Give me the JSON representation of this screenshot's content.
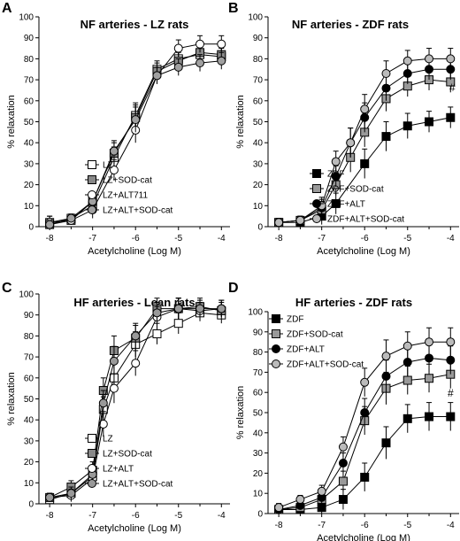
{
  "chart_data": [
    {
      "panel": "A",
      "type": "line",
      "title": "NF arteries - LZ rats",
      "xlabel": "Acetylcholine (Log M)",
      "ylabel": "% relaxation",
      "xlim": [
        -8.25,
        -3.8
      ],
      "ylim": [
        0,
        100
      ],
      "x_ticks": [
        -8,
        -7,
        -6,
        -5,
        -4
      ],
      "y_ticks": [
        0,
        10,
        20,
        30,
        40,
        50,
        60,
        70,
        80,
        90,
        100
      ],
      "legend_position": "lower-left",
      "annotation": "",
      "series": [
        {
          "name": "LZ",
          "marker": "square",
          "fill": "#ffffff",
          "x": [
            -8,
            -7.5,
            -7,
            -6.5,
            -6,
            -5.5,
            -5,
            -4.5,
            -4
          ],
          "y": [
            2,
            4,
            10,
            33,
            53,
            75,
            80,
            82,
            81
          ],
          "err": [
            3,
            2,
            4,
            5,
            6,
            4,
            4,
            4,
            4
          ]
        },
        {
          "name": "LZ+SOD-cat",
          "marker": "square",
          "fill": "#888888",
          "x": [
            -8,
            -7.5,
            -7,
            -6.5,
            -6,
            -5.5,
            -5,
            -4.5,
            -4
          ],
          "y": [
            1,
            3,
            12,
            35,
            52,
            74,
            79,
            83,
            82
          ],
          "err": [
            2,
            2,
            4,
            5,
            6,
            4,
            4,
            4,
            4
          ]
        },
        {
          "name": "LZ+ALT711",
          "marker": "circle",
          "fill": "#ffffff",
          "x": [
            -8,
            -7.5,
            -7,
            -6.5,
            -6,
            -5.5,
            -5,
            -4.5,
            -4
          ],
          "y": [
            2,
            3,
            8,
            27,
            46,
            72,
            85,
            87,
            87
          ],
          "err": [
            3,
            2,
            4,
            5,
            6,
            4,
            4,
            4,
            4
          ]
        },
        {
          "name": "LZ+ALT+SOD-cat",
          "marker": "circle",
          "fill": "#a0a0a0",
          "x": [
            -8,
            -7.5,
            -7,
            -6.5,
            -6,
            -5.5,
            -5,
            -4.5,
            -4
          ],
          "y": [
            1,
            4,
            12,
            36,
            51,
            72,
            76,
            78,
            79
          ],
          "err": [
            2,
            2,
            4,
            5,
            6,
            4,
            4,
            4,
            4
          ]
        }
      ]
    },
    {
      "panel": "B",
      "type": "line",
      "title": "NF arteries - ZDF rats",
      "xlabel": "Acetylcholine (Log M)",
      "ylabel": "% relaxation",
      "xlim": [
        -8.25,
        -3.8
      ],
      "ylim": [
        0,
        100
      ],
      "x_ticks": [
        -8,
        -7,
        -6,
        -5,
        -4
      ],
      "y_ticks": [
        0,
        10,
        20,
        30,
        40,
        50,
        60,
        70,
        80,
        90,
        100
      ],
      "legend_position": "lower-right",
      "annotation": "#",
      "series": [
        {
          "name": "ZDF",
          "marker": "square",
          "fill": "#000000",
          "x": [
            -8,
            -7.5,
            -7,
            -6.67,
            -6,
            -5.5,
            -5,
            -4.5,
            -4
          ],
          "y": [
            2,
            2,
            5,
            11,
            30,
            43,
            48,
            50,
            52
          ],
          "err": [
            2,
            2,
            4,
            5,
            7,
            7,
            6,
            5,
            5
          ]
        },
        {
          "name": "ZDF+SOD-cat",
          "marker": "square",
          "fill": "#999999",
          "x": [
            -8,
            -7.5,
            -7,
            -6.67,
            -6.33,
            -6,
            -5.5,
            -5,
            -4.5,
            -4
          ],
          "y": [
            2,
            3,
            8,
            20,
            33,
            45,
            61,
            67,
            70,
            69
          ],
          "err": [
            2,
            2,
            4,
            5,
            7,
            7,
            6,
            5,
            5,
            5
          ]
        },
        {
          "name": "ZDF+ALT",
          "marker": "circle",
          "fill": "#000000",
          "x": [
            -8,
            -7.5,
            -7,
            -6.67,
            -6.33,
            -6,
            -5.5,
            -5,
            -4.5,
            -4
          ],
          "y": [
            2,
            3,
            9,
            24,
            40,
            52,
            66,
            73,
            75,
            75
          ],
          "err": [
            2,
            2,
            4,
            5,
            7,
            7,
            6,
            5,
            5,
            5
          ]
        },
        {
          "name": "ZDF+ALT+SOD-cat",
          "marker": "circle",
          "fill": "#bbbbbb",
          "x": [
            -8,
            -7.5,
            -7,
            -6.67,
            -6.33,
            -6,
            -5.5,
            -5,
            -4.5,
            -4
          ],
          "y": [
            2,
            3,
            10,
            31,
            40,
            56,
            73,
            79,
            80,
            80
          ],
          "err": [
            2,
            2,
            4,
            5,
            7,
            7,
            6,
            5,
            5,
            5
          ]
        }
      ]
    },
    {
      "panel": "C",
      "type": "line",
      "title": "HF arteries - Lean rats",
      "xlabel": "Acetylcholine (Log M)",
      "ylabel": "% relaxation",
      "xlim": [
        -8.25,
        -3.8
      ],
      "ylim": [
        0,
        100
      ],
      "x_ticks": [
        -8,
        -7,
        -6,
        -5,
        -4
      ],
      "y_ticks": [
        0,
        10,
        20,
        30,
        40,
        50,
        60,
        70,
        80,
        90,
        100
      ],
      "legend_position": "lower-right",
      "annotation": "",
      "series": [
        {
          "name": "LZ",
          "marker": "square",
          "fill": "#ffffff",
          "x": [
            -8,
            -7.5,
            -7,
            -6.75,
            -6.5,
            -6,
            -5.5,
            -5,
            -4.5,
            -4
          ],
          "y": [
            2,
            5,
            13,
            45,
            60,
            76,
            81,
            86,
            91,
            90
          ],
          "err": [
            2,
            3,
            4,
            6,
            7,
            6,
            5,
            5,
            4,
            4
          ]
        },
        {
          "name": "LZ+SOD-cat",
          "marker": "square",
          "fill": "#888888",
          "x": [
            -8,
            -7.5,
            -7,
            -6.75,
            -6.5,
            -6,
            -5.5,
            -5,
            -4.5,
            -4
          ],
          "y": [
            3,
            8,
            16,
            54,
            73,
            79,
            93,
            93,
            94,
            92
          ],
          "err": [
            2,
            3,
            4,
            6,
            7,
            6,
            5,
            5,
            4,
            4
          ]
        },
        {
          "name": "LZ+ALT",
          "marker": "circle",
          "fill": "#ffffff",
          "x": [
            -8,
            -7.5,
            -7,
            -6.75,
            -6.5,
            -6,
            -5.5,
            -5,
            -4.5,
            -4
          ],
          "y": [
            3,
            4,
            12,
            38,
            55,
            67,
            89,
            93,
            92,
            93
          ],
          "err": [
            2,
            3,
            4,
            6,
            7,
            6,
            5,
            5,
            4,
            4
          ]
        },
        {
          "name": "LZ+ALT+SOD-cat",
          "marker": "circle",
          "fill": "#999999",
          "x": [
            -8,
            -7.5,
            -7,
            -6.75,
            -6.5,
            -6,
            -5.5,
            -5,
            -4.5,
            -4
          ],
          "y": [
            3,
            5,
            14,
            48,
            68,
            80,
            91,
            93,
            93,
            93
          ],
          "err": [
            2,
            3,
            4,
            6,
            7,
            6,
            5,
            5,
            4,
            4
          ]
        }
      ]
    },
    {
      "panel": "D",
      "type": "line",
      "title": "HF arteries - ZDF rats",
      "xlabel": "Acetylcholine (Log M)",
      "ylabel": "% relaxation",
      "xlim": [
        -8.25,
        -3.8
      ],
      "ylim": [
        0,
        100
      ],
      "x_ticks": [
        -8,
        -7,
        -6,
        -5,
        -4
      ],
      "y_ticks": [
        0,
        10,
        20,
        30,
        40,
        50,
        60,
        70,
        80,
        90,
        100
      ],
      "legend_position": "upper-left",
      "annotation": "#",
      "series": [
        {
          "name": "ZDF",
          "marker": "square",
          "fill": "#000000",
          "x": [
            -8,
            -7.5,
            -7,
            -6.5,
            -6,
            -5.5,
            -5,
            -4.5,
            -4
          ],
          "y": [
            2,
            2,
            3,
            7,
            18,
            35,
            47,
            48,
            48
          ],
          "err": [
            2,
            2,
            3,
            5,
            7,
            8,
            7,
            7,
            7
          ]
        },
        {
          "name": "ZDF+SOD-cat",
          "marker": "square",
          "fill": "#999999",
          "x": [
            -8,
            -7.5,
            -7,
            -6.5,
            -6,
            -5.5,
            -5,
            -4.5,
            -4
          ],
          "y": [
            2,
            3,
            7,
            16,
            46,
            62,
            66,
            67,
            69
          ],
          "err": [
            2,
            2,
            3,
            5,
            7,
            8,
            7,
            7,
            7
          ]
        },
        {
          "name": "ZDF+ALT",
          "marker": "circle",
          "fill": "#000000",
          "x": [
            -8,
            -7.5,
            -7,
            -6.5,
            -6,
            -5.5,
            -5,
            -4.5,
            -4
          ],
          "y": [
            2,
            4,
            8,
            25,
            50,
            68,
            75,
            77,
            76
          ],
          "err": [
            2,
            2,
            3,
            5,
            7,
            8,
            7,
            7,
            7
          ]
        },
        {
          "name": "ZDF+ALT+SOD-cat",
          "marker": "circle",
          "fill": "#bbbbbb",
          "x": [
            -8,
            -7.5,
            -7,
            -6.5,
            -6,
            -5.5,
            -5,
            -4.5,
            -4
          ],
          "y": [
            3,
            7,
            11,
            33,
            65,
            78,
            83,
            85,
            85
          ],
          "err": [
            2,
            2,
            3,
            5,
            7,
            8,
            7,
            7,
            7
          ]
        }
      ]
    }
  ]
}
